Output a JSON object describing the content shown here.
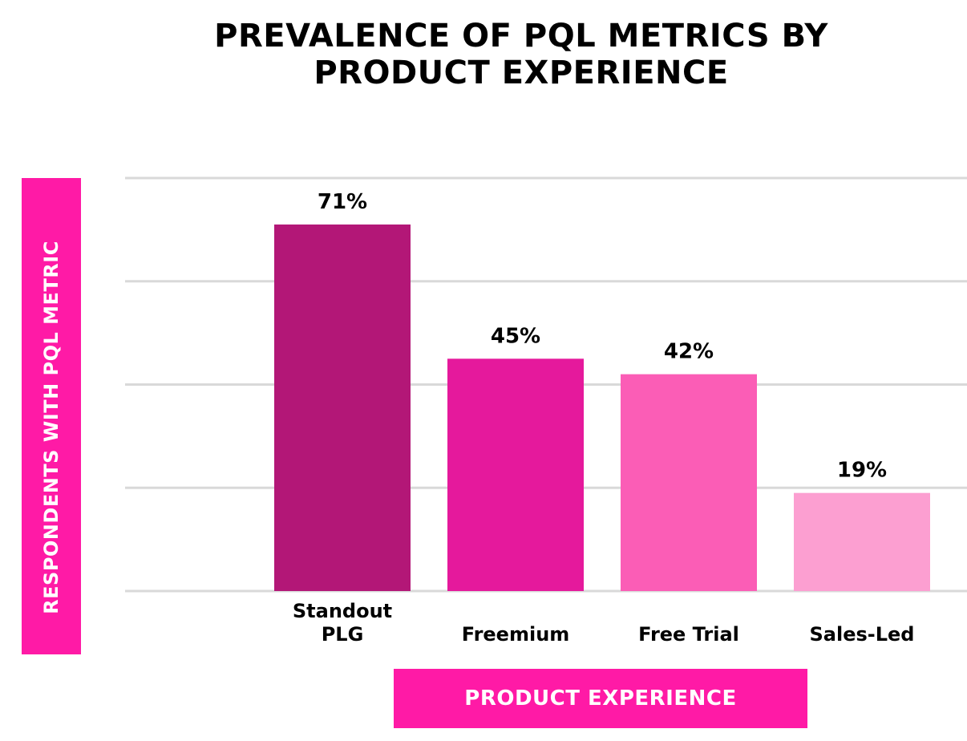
{
  "chart_data": {
    "type": "bar",
    "title": [
      "PREVALENCE OF PQL METRICS BY",
      "PRODUCT EXPERIENCE"
    ],
    "ylabel": "RESPONDENTS WITH PQL METRIC",
    "xlabel": "PRODUCT EXPERIENCE",
    "categories": [
      [
        "Standout",
        "PLG"
      ],
      [
        "Freemium"
      ],
      [
        "Free Trial"
      ],
      [
        "Sales-Led"
      ]
    ],
    "values": [
      71,
      45,
      42,
      19
    ],
    "data_labels": [
      "71%",
      "45%",
      "42%",
      "19%"
    ],
    "ylim": [
      0,
      80
    ],
    "yticks": [
      0,
      20,
      40,
      60,
      80
    ],
    "grid": true,
    "legend": "none",
    "colors": [
      "#b31777",
      "#e5199c",
      "#fb5db6",
      "#fc9fd1"
    ],
    "grid_color": "#d9d9d9",
    "accent_color": "#ff1aa6"
  }
}
